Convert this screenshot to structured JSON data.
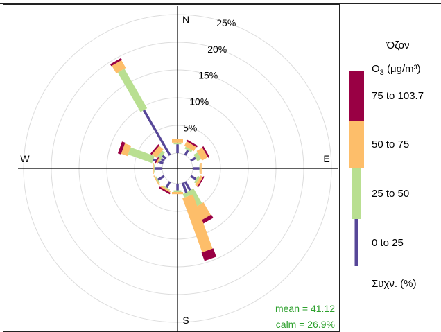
{
  "chart_data": {
    "type": "polar-windrose",
    "directions": {
      "north": "N",
      "east": "E",
      "south": "S",
      "west": "W"
    },
    "radial_ticks": [
      5,
      10,
      15,
      20,
      25
    ],
    "radial_tick_labels": [
      "5%",
      "10%",
      "15%",
      "20%",
      "25%"
    ],
    "rmax": 27,
    "bins": [
      {
        "label": "0 to 25",
        "color": "#574798"
      },
      {
        "label": "25 to 50",
        "color": "#b9df91"
      },
      {
        "label": "50 to 75",
        "color": "#fdbe6a"
      },
      {
        "label": "75 to 103.7",
        "color": "#990044"
      }
    ],
    "spokes": [
      {
        "angle": 0,
        "values": [
          1.6,
          0.3,
          0.6,
          0.0
        ]
      },
      {
        "angle": 30,
        "values": [
          1.0,
          0.4,
          0.9,
          0.3
        ]
      },
      {
        "angle": 60,
        "values": [
          1.0,
          0.8,
          1.2,
          0.3
        ]
      },
      {
        "angle": 90,
        "values": [
          1.2,
          0.2,
          0.2,
          0.0
        ]
      },
      {
        "angle": 120,
        "values": [
          1.1,
          0.4,
          0.5,
          0.2
        ]
      },
      {
        "angle": 150,
        "values": [
          1.8,
          3.1,
          2.6,
          0.7
        ]
      },
      {
        "angle": 160,
        "values": [
          1.9,
          0.7,
          10.4,
          1.6
        ]
      },
      {
        "angle": 180,
        "values": [
          1.2,
          0.3,
          0.4,
          0.0
        ]
      },
      {
        "angle": 210,
        "values": [
          1.2,
          0.2,
          0.3,
          0.3
        ]
      },
      {
        "angle": 240,
        "values": [
          1.3,
          0.2,
          0.2,
          0.0
        ]
      },
      {
        "angle": 270,
        "values": [
          1.4,
          0.1,
          0.1,
          0.0
        ]
      },
      {
        "angle": 290,
        "values": [
          1.9,
          4.6,
          1.2,
          0.6
        ]
      },
      {
        "angle": 300,
        "values": [
          0.6,
          0.2,
          0.3,
          0.2
        ]
      },
      {
        "angle": 310,
        "values": [
          0.8,
          0.6,
          1.0,
          0.3
        ]
      },
      {
        "angle": 330,
        "values": [
          9.4,
          8.2,
          1.6,
          0.4
        ]
      }
    ],
    "legend_title": "Όζον",
    "legend_pollutant": "O",
    "legend_subscript": "3",
    "legend_unit": " (μg/m³)",
    "legend_footer": "Συχν. (%)",
    "mean_label": "mean = 41.12",
    "calm_label": "calm = 26.9%",
    "stats_color": "#2ca02c"
  }
}
